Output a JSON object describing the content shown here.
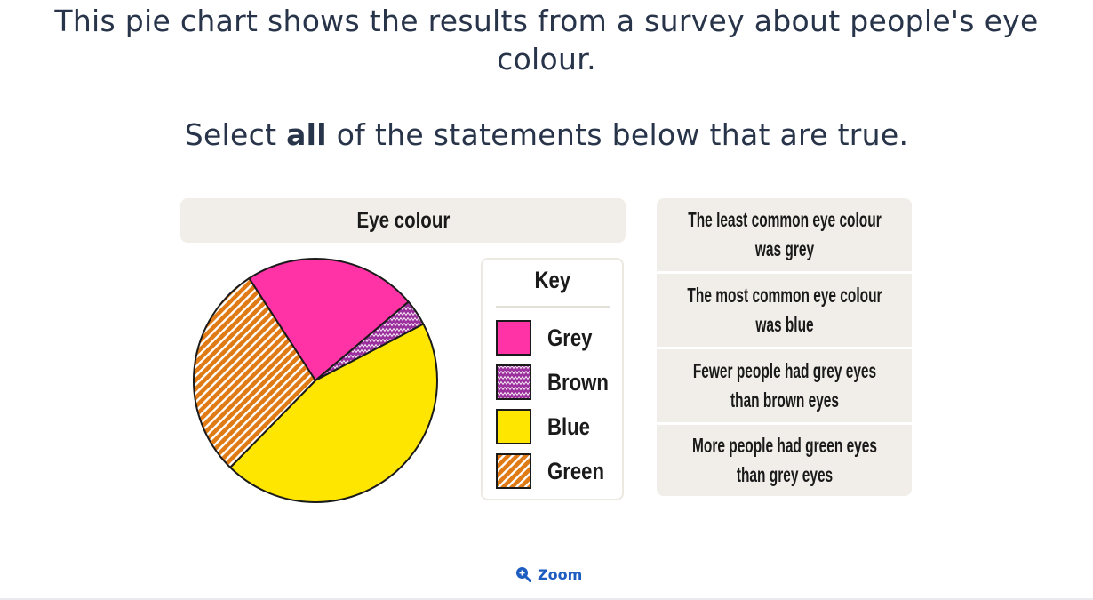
{
  "question": {
    "text": "This pie chart shows the results from a survey about people's eye colour."
  },
  "instruction": {
    "prefix": "Select ",
    "emphasis": "all",
    "suffix": " of the statements below that are true."
  },
  "chart_data": {
    "type": "pie",
    "title": "Eye colour",
    "key_title": "Key",
    "categories": [
      "Grey",
      "Brown",
      "Blue",
      "Green"
    ],
    "values": [
      23,
      3.5,
      45,
      28.5
    ],
    "unit": "percent of respondents (estimated)",
    "start_angle_deg": 237,
    "colors": {
      "Grey": "#ff33a5",
      "Brown": "#9b2f9c",
      "Blue": "#ffe600",
      "Green": "#e07a14"
    },
    "patterns": {
      "Grey": "solid",
      "Brown": "zigzag",
      "Blue": "solid",
      "Green": "diagonal-stripes"
    },
    "legend_position": "right"
  },
  "statements": [
    {
      "line1": "The least common eye colour",
      "line2": "was grey"
    },
    {
      "line1": "The most common eye colour",
      "line2": "was blue"
    },
    {
      "line1": "Fewer people had grey eyes",
      "line2": "than brown eyes"
    },
    {
      "line1": "More people had green eyes",
      "line2": "than grey eyes"
    }
  ],
  "zoom": {
    "label": "Zoom",
    "icon": "zoom-in-icon",
    "color": "#1d5cc1"
  }
}
